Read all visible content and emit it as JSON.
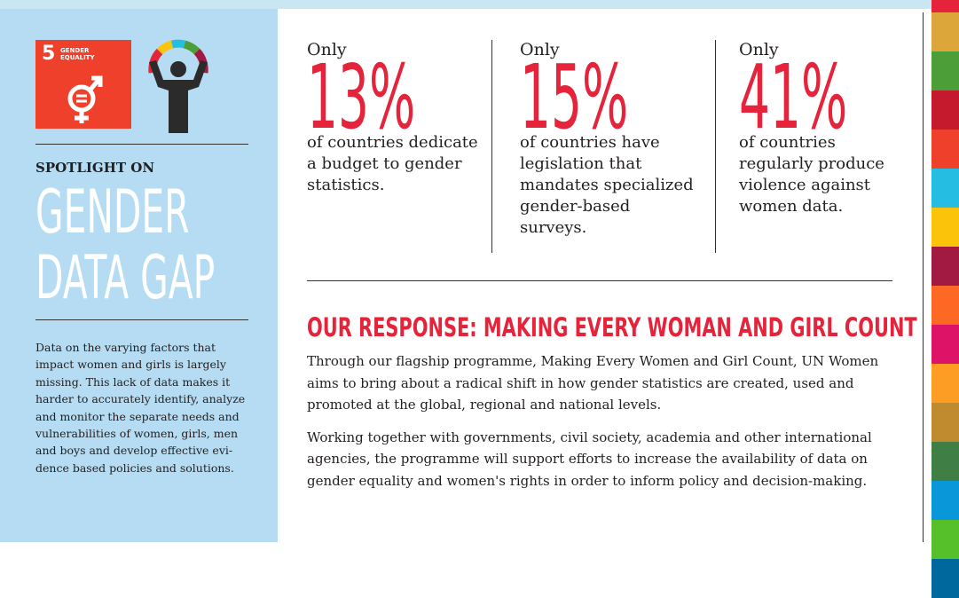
{
  "sidebar": {
    "badge_number": "5",
    "badge_label": [
      "GENDER",
      "EQUALITY"
    ],
    "kicker": "SPOTLIGHT ON",
    "title_lines": [
      "GENDER",
      "DATA GAP"
    ],
    "body": "Data on the varying factors that impact women and girls is largely missing. This lack of data makes it harder to accurately identify, analyze and monitor the separate needs and vulnerabilities of women, girls, men and boys and develop effective evi-dence based policies and solutions."
  },
  "stats": [
    {
      "prefix": "Only",
      "figure": "13%",
      "text": "of countries dedicate a budget to gender statistics."
    },
    {
      "prefix": "Only",
      "figure": "15%",
      "text": "of countries have legislation that mandates specialized gender-based surveys."
    },
    {
      "prefix": "Only",
      "figure": "41%",
      "text": "of countries regularly produce violence against women data."
    }
  ],
  "response": {
    "heading": "OUR RESPONSE: MAKING EVERY WOMAN AND GIRL COUNT",
    "paragraphs": [
      "Through our flagship programme, Making Every Women and Girl Count, UN Women aims to bring about a radical shift in how gender statistics are created, used and promoted at the global, regional and national levels.",
      "Working together with governments, civil society, academia and other international agencies, the programme will support efforts to increase the availability of data on gender equality and women's rights in order to inform policy and decision-making."
    ]
  }
}
